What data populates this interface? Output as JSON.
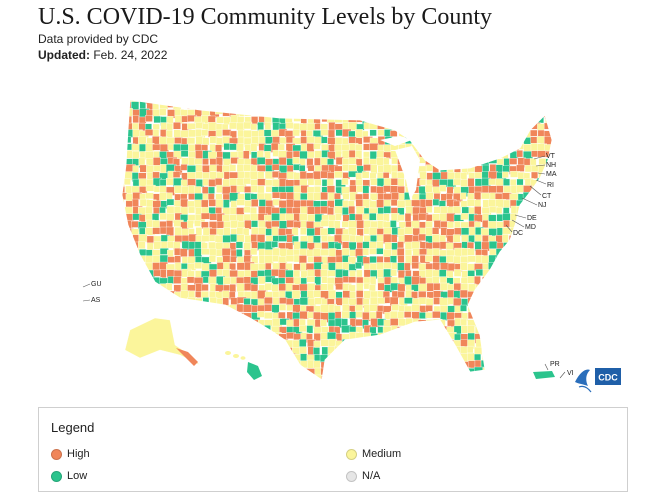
{
  "header": {
    "title": "U.S. COVID-19 Community Levels by County",
    "source": "Data provided by CDC",
    "updated_label": "Updated:",
    "updated_value": "Feb. 24, 2022"
  },
  "map": {
    "state_labels": [
      "VT",
      "NH",
      "MA",
      "RI",
      "CT",
      "NJ",
      "DE",
      "MD",
      "DC"
    ],
    "territory_labels": [
      "GU",
      "AS",
      "PR",
      "VI"
    ],
    "logo_text": "CDC"
  },
  "legend": {
    "title": "Legend",
    "items": [
      {
        "label": "High",
        "color": "#f0865a"
      },
      {
        "label": "Medium",
        "color": "#fbf59b"
      },
      {
        "label": "Low",
        "color": "#2bc48d"
      },
      {
        "label": "N/A",
        "color": "#e6e6e6"
      }
    ]
  },
  "colors": {
    "high": "#f0865a",
    "medium": "#fbf59b",
    "low": "#2bc48d"
  }
}
